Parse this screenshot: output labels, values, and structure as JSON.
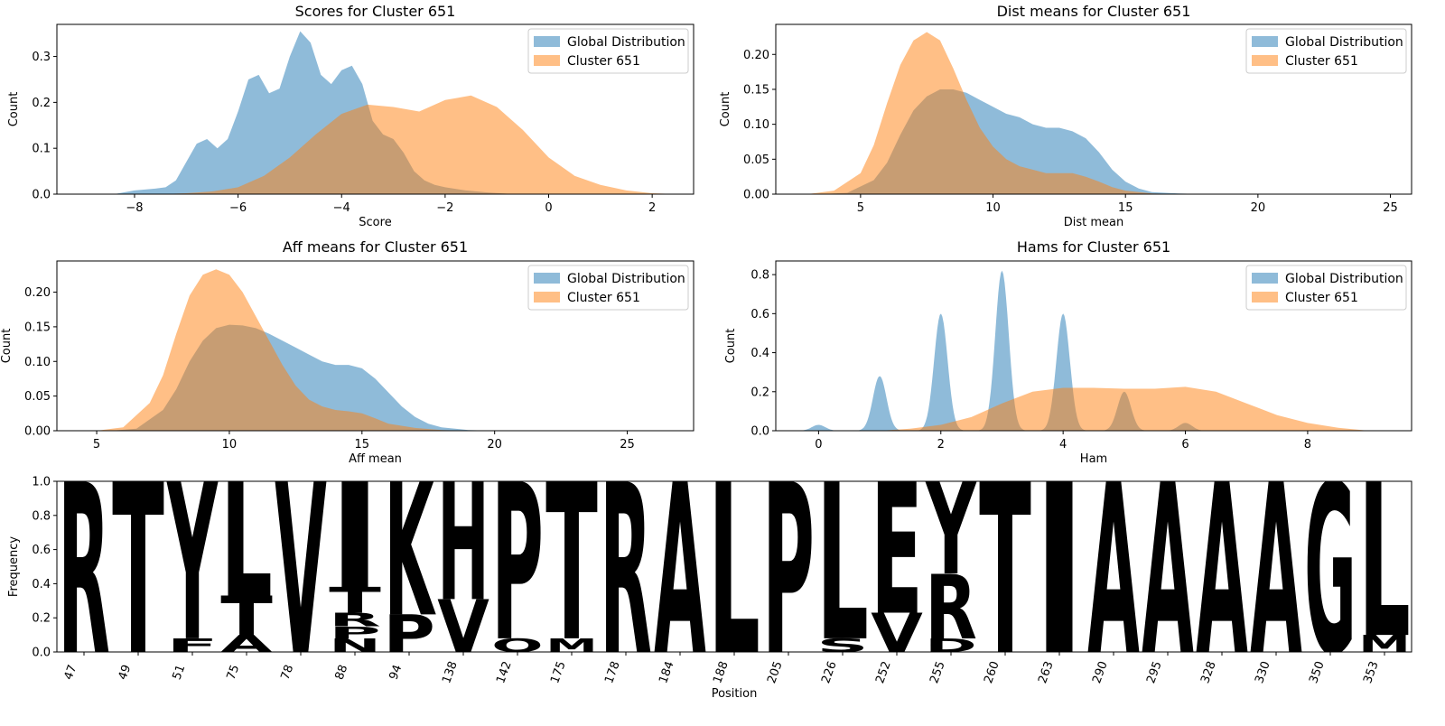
{
  "chart_data": [
    {
      "type": "area",
      "title": "Scores for Cluster 651",
      "xlabel": "Score",
      "ylabel": "Count",
      "xlim": [
        -9.5,
        2.8
      ],
      "ylim": [
        0,
        0.37
      ],
      "xticks": [
        -8,
        -6,
        -4,
        -2,
        0,
        2
      ],
      "xtick_labels": [
        "−8",
        "−6",
        "−4",
        "−2",
        "0",
        "2"
      ],
      "yticks": [
        0,
        0.1,
        0.2,
        0.3
      ],
      "ytick_labels": [
        "0.0",
        "0.1",
        "0.2",
        "0.3"
      ],
      "legend_position": "top-right",
      "series": [
        {
          "name": "Global Distribution",
          "color": "#1f77b4",
          "x": [
            -8.4,
            -8.0,
            -7.6,
            -7.4,
            -7.2,
            -7.0,
            -6.8,
            -6.6,
            -6.4,
            -6.2,
            -6.0,
            -5.8,
            -5.6,
            -5.4,
            -5.2,
            -5.0,
            -4.8,
            -4.6,
            -4.4,
            -4.2,
            -4.0,
            -3.8,
            -3.6,
            -3.4,
            -3.2,
            -3.0,
            -2.8,
            -2.6,
            -2.4,
            -2.2,
            -2.0,
            -1.6,
            -1.2,
            -0.8,
            -0.4
          ],
          "values": [
            0.0,
            0.008,
            0.012,
            0.015,
            0.03,
            0.07,
            0.11,
            0.12,
            0.1,
            0.12,
            0.18,
            0.25,
            0.26,
            0.22,
            0.23,
            0.3,
            0.355,
            0.33,
            0.26,
            0.24,
            0.27,
            0.28,
            0.24,
            0.16,
            0.13,
            0.12,
            0.09,
            0.05,
            0.03,
            0.02,
            0.015,
            0.008,
            0.004,
            0.001,
            0.0
          ]
        },
        {
          "name": "Cluster 651",
          "color": "#ff7f0e",
          "x": [
            -7.5,
            -7.0,
            -6.5,
            -6.0,
            -5.5,
            -5.0,
            -4.5,
            -4.0,
            -3.5,
            -3.0,
            -2.5,
            -2.0,
            -1.5,
            -1.0,
            -0.5,
            0.0,
            0.5,
            1.0,
            1.5,
            2.0,
            2.5
          ],
          "values": [
            0.0,
            0.002,
            0.006,
            0.015,
            0.04,
            0.08,
            0.13,
            0.175,
            0.195,
            0.19,
            0.18,
            0.205,
            0.215,
            0.19,
            0.14,
            0.08,
            0.04,
            0.02,
            0.008,
            0.002,
            0.0
          ]
        }
      ]
    },
    {
      "type": "area",
      "title": "Dist means for Cluster 651",
      "xlabel": "Dist mean",
      "ylabel": "Count",
      "xlim": [
        1.8,
        25.8
      ],
      "ylim": [
        0,
        0.243
      ],
      "xticks": [
        5,
        10,
        15,
        20,
        25
      ],
      "xtick_labels": [
        "5",
        "10",
        "15",
        "20",
        "25"
      ],
      "yticks": [
        0,
        0.05,
        0.1,
        0.15,
        0.2
      ],
      "ytick_labels": [
        "0.00",
        "0.05",
        "0.10",
        "0.15",
        "0.20"
      ],
      "legend_position": "top-right",
      "series": [
        {
          "name": "Global Distribution",
          "color": "#1f77b4",
          "x": [
            3.5,
            4.5,
            5.5,
            6.0,
            6.5,
            7.0,
            7.5,
            8.0,
            8.5,
            9.0,
            9.5,
            10.0,
            10.5,
            11.0,
            11.5,
            12.0,
            12.5,
            13.0,
            13.5,
            14.0,
            14.5,
            15.0,
            15.5,
            16.0,
            17.0,
            18.0
          ],
          "values": [
            0.0,
            0.002,
            0.02,
            0.045,
            0.085,
            0.12,
            0.14,
            0.15,
            0.15,
            0.145,
            0.135,
            0.125,
            0.115,
            0.11,
            0.1,
            0.095,
            0.095,
            0.09,
            0.08,
            0.06,
            0.035,
            0.018,
            0.008,
            0.003,
            0.001,
            0.0
          ]
        },
        {
          "name": "Cluster 651",
          "color": "#ff7f0e",
          "x": [
            3.0,
            4.0,
            5.0,
            5.5,
            6.0,
            6.5,
            7.0,
            7.5,
            8.0,
            8.5,
            9.0,
            9.5,
            10.0,
            10.5,
            11.0,
            11.5,
            12.0,
            12.5,
            13.0,
            13.5,
            14.0,
            14.5,
            15.0,
            16.0,
            17.0
          ],
          "values": [
            0.0,
            0.005,
            0.03,
            0.07,
            0.13,
            0.185,
            0.22,
            0.232,
            0.22,
            0.18,
            0.135,
            0.095,
            0.068,
            0.05,
            0.04,
            0.035,
            0.03,
            0.03,
            0.03,
            0.025,
            0.018,
            0.01,
            0.005,
            0.001,
            0.0
          ]
        }
      ]
    },
    {
      "type": "area",
      "title": "Aff means for Cluster 651",
      "xlabel": "Aff mean",
      "ylabel": "Count",
      "xlim": [
        3.5,
        27.5
      ],
      "ylim": [
        0,
        0.245
      ],
      "xticks": [
        5,
        10,
        15,
        20,
        25
      ],
      "xtick_labels": [
        "5",
        "10",
        "15",
        "20",
        "25"
      ],
      "yticks": [
        0,
        0.05,
        0.1,
        0.15,
        0.2
      ],
      "ytick_labels": [
        "0.00",
        "0.05",
        "0.10",
        "0.15",
        "0.20"
      ],
      "legend_position": "top-right",
      "series": [
        {
          "name": "Global Distribution",
          "color": "#1f77b4",
          "x": [
            5.5,
            6.5,
            7.5,
            8.0,
            8.5,
            9.0,
            9.5,
            10.0,
            10.5,
            11.0,
            11.5,
            12.0,
            12.5,
            13.0,
            13.5,
            14.0,
            14.5,
            15.0,
            15.5,
            16.0,
            16.5,
            17.0,
            17.5,
            18.0,
            19.0,
            20.0
          ],
          "values": [
            0.0,
            0.003,
            0.03,
            0.06,
            0.1,
            0.13,
            0.148,
            0.153,
            0.152,
            0.148,
            0.14,
            0.13,
            0.12,
            0.11,
            0.1,
            0.095,
            0.095,
            0.09,
            0.075,
            0.055,
            0.035,
            0.02,
            0.01,
            0.005,
            0.001,
            0.0
          ]
        },
        {
          "name": "Cluster 651",
          "color": "#ff7f0e",
          "x": [
            5.0,
            6.0,
            7.0,
            7.5,
            8.0,
            8.5,
            9.0,
            9.5,
            10.0,
            10.5,
            11.0,
            11.5,
            12.0,
            12.5,
            13.0,
            13.5,
            14.0,
            14.5,
            15.0,
            15.5,
            16.0,
            17.0,
            18.0,
            19.0
          ],
          "values": [
            0.0,
            0.005,
            0.04,
            0.08,
            0.14,
            0.195,
            0.225,
            0.233,
            0.225,
            0.2,
            0.165,
            0.13,
            0.095,
            0.065,
            0.045,
            0.035,
            0.03,
            0.028,
            0.025,
            0.018,
            0.01,
            0.004,
            0.001,
            0.0
          ]
        }
      ]
    },
    {
      "type": "area",
      "title": "Hams for Cluster 651",
      "xlabel": "Ham",
      "ylabel": "Count",
      "xlim": [
        -0.7,
        9.7
      ],
      "ylim": [
        0,
        0.87
      ],
      "xticks": [
        0,
        2,
        4,
        6,
        8
      ],
      "xtick_labels": [
        "0",
        "2",
        "4",
        "6",
        "8"
      ],
      "yticks": [
        0,
        0.2,
        0.4,
        0.6,
        0.8
      ],
      "ytick_labels": [
        "0.0",
        "0.2",
        "0.4",
        "0.6",
        "0.8"
      ],
      "legend_position": "top-right",
      "series": [
        {
          "name": "Global Distribution",
          "color": "#1f77b4",
          "peaks": [
            {
              "center": 0,
              "height": 0.03,
              "width": 0.11
            },
            {
              "center": 1,
              "height": 0.28,
              "width": 0.11
            },
            {
              "center": 2,
              "height": 0.6,
              "width": 0.11
            },
            {
              "center": 3,
              "height": 0.82,
              "width": 0.11
            },
            {
              "center": 4,
              "height": 0.6,
              "width": 0.11
            },
            {
              "center": 5,
              "height": 0.2,
              "width": 0.11
            },
            {
              "center": 6,
              "height": 0.04,
              "width": 0.11
            }
          ]
        },
        {
          "name": "Cluster 651",
          "color": "#ff7f0e",
          "x": [
            1.0,
            1.5,
            2.0,
            2.5,
            3.0,
            3.5,
            4.0,
            4.5,
            5.0,
            5.5,
            6.0,
            6.5,
            7.0,
            7.5,
            8.0,
            8.5,
            9.0
          ],
          "values": [
            0.0,
            0.01,
            0.03,
            0.07,
            0.14,
            0.2,
            0.22,
            0.22,
            0.215,
            0.215,
            0.225,
            0.2,
            0.14,
            0.08,
            0.04,
            0.015,
            0.0
          ]
        }
      ]
    },
    {
      "type": "logo",
      "xlabel": "Position",
      "ylabel": "Frequency",
      "ylim": [
        0,
        1.0
      ],
      "yticks": [
        0,
        0.2,
        0.4,
        0.6,
        0.8,
        1.0
      ],
      "ytick_labels": [
        "0.0",
        "0.2",
        "0.4",
        "0.6",
        "0.8",
        "1.0"
      ],
      "colors": {
        "R": "#0000ff",
        "K": "#0000ff",
        "H": "#0000ff",
        "T": "#008000",
        "Y": "#008000",
        "S": "#008000",
        "G": "#008000",
        "E": "#ff0000",
        "D": "#ff0000",
        "Q": "#800080",
        "N": "#800080"
      },
      "default_color": "#000000",
      "positions": [
        {
          "label": "47",
          "stack": [
            {
              "letter": "R",
              "value": 1.0
            }
          ]
        },
        {
          "label": "49",
          "stack": [
            {
              "letter": "T",
              "value": 1.0
            }
          ]
        },
        {
          "label": "51",
          "stack": [
            {
              "letter": "F",
              "value": 0.08
            },
            {
              "letter": "Y",
              "value": 0.92
            }
          ]
        },
        {
          "label": "75",
          "stack": [
            {
              "letter": "A",
              "value": 0.1
            },
            {
              "letter": "T",
              "value": 0.23
            },
            {
              "letter": "L",
              "value": 0.67
            }
          ]
        },
        {
          "label": "78",
          "stack": [
            {
              "letter": "V",
              "value": 1.0
            }
          ]
        },
        {
          "label": "88",
          "stack": [
            {
              "letter": "N",
              "value": 0.08
            },
            {
              "letter": "P",
              "value": 0.07
            },
            {
              "letter": "R",
              "value": 0.08
            },
            {
              "letter": "T",
              "value": 0.15
            },
            {
              "letter": "I",
              "value": 0.62
            }
          ]
        },
        {
          "label": "94",
          "stack": [
            {
              "letter": "P",
              "value": 0.22
            },
            {
              "letter": "K",
              "value": 0.78
            }
          ]
        },
        {
          "label": "138",
          "stack": [
            {
              "letter": "V",
              "value": 0.31
            },
            {
              "letter": "H",
              "value": 0.69
            }
          ]
        },
        {
          "label": "142",
          "stack": [
            {
              "letter": "Q",
              "value": 0.08
            },
            {
              "letter": "P",
              "value": 0.92
            }
          ]
        },
        {
          "label": "175",
          "stack": [
            {
              "letter": "M",
              "value": 0.08
            },
            {
              "letter": "T",
              "value": 0.92
            }
          ]
        },
        {
          "label": "178",
          "stack": [
            {
              "letter": "R",
              "value": 1.0
            }
          ]
        },
        {
          "label": "184",
          "stack": [
            {
              "letter": "A",
              "value": 1.0
            }
          ]
        },
        {
          "label": "188",
          "stack": [
            {
              "letter": "L",
              "value": 1.0
            }
          ]
        },
        {
          "label": "205",
          "stack": [
            {
              "letter": "P",
              "value": 1.0
            }
          ]
        },
        {
          "label": "226",
          "stack": [
            {
              "letter": "S",
              "value": 0.08
            },
            {
              "letter": "L",
              "value": 0.92
            }
          ]
        },
        {
          "label": "252",
          "stack": [
            {
              "letter": "V",
              "value": 0.23
            },
            {
              "letter": "E",
              "value": 0.77
            }
          ]
        },
        {
          "label": "255",
          "stack": [
            {
              "letter": "D",
              "value": 0.08
            },
            {
              "letter": "R",
              "value": 0.38
            },
            {
              "letter": "Y",
              "value": 0.54
            }
          ]
        },
        {
          "label": "260",
          "stack": [
            {
              "letter": "T",
              "value": 1.0
            }
          ]
        },
        {
          "label": "263",
          "stack": [
            {
              "letter": "I",
              "value": 1.0
            }
          ]
        },
        {
          "label": "290",
          "stack": [
            {
              "letter": "A",
              "value": 1.0
            }
          ]
        },
        {
          "label": "295",
          "stack": [
            {
              "letter": "A",
              "value": 1.0
            }
          ]
        },
        {
          "label": "328",
          "stack": [
            {
              "letter": "A",
              "value": 1.0
            }
          ]
        },
        {
          "label": "330",
          "stack": [
            {
              "letter": "A",
              "value": 1.0
            }
          ]
        },
        {
          "label": "350",
          "stack": [
            {
              "letter": "G",
              "value": 1.0
            }
          ]
        },
        {
          "label": "353",
          "stack": [
            {
              "letter": "M",
              "value": 0.1
            },
            {
              "letter": "L",
              "value": 0.9
            }
          ]
        }
      ]
    }
  ]
}
